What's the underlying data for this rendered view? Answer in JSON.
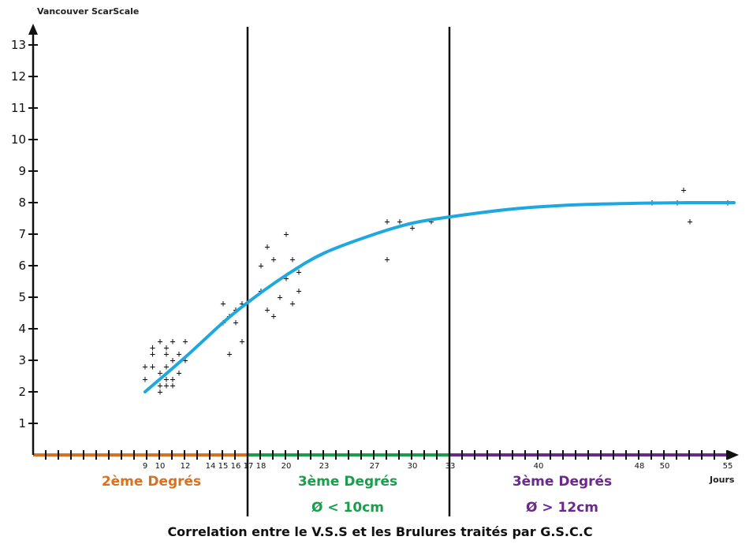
{
  "chart_data": {
    "type": "scatter",
    "title": "Correlation entre le V.S.S et les Brulures traités par G.S.C.C",
    "ylabel": "Vancouver ScarScale",
    "xlabel": "Jours",
    "ylim": [
      0,
      13.5
    ],
    "xlim": [
      0,
      56
    ],
    "y_ticks": [
      1,
      2,
      3,
      4,
      5,
      6,
      7,
      8,
      9,
      10,
      11,
      12,
      13
    ],
    "x_ticks": [
      9,
      10,
      12,
      14,
      15,
      16,
      17,
      18,
      20,
      23,
      27,
      30,
      33,
      40,
      48,
      50,
      55
    ],
    "grid": false,
    "zones": [
      {
        "label": "2ème Degrés",
        "sub": "",
        "from": 0,
        "to": 17,
        "color": "#d9701e"
      },
      {
        "label": "3ème Degrés",
        "sub": "Ø < 10cm",
        "from": 17,
        "to": 33,
        "color": "#1a9e4c"
      },
      {
        "label": "3ème Degrés",
        "sub": "Ø  >  12cm",
        "from": 33,
        "to": 56,
        "color": "#6b2a8a"
      }
    ],
    "dividers": [
      17,
      33
    ],
    "series": [
      {
        "type": "scatter",
        "marker": "+",
        "points": [
          [
            9,
            2.8
          ],
          [
            9,
            2.4
          ],
          [
            9.5,
            2.8
          ],
          [
            9.5,
            3.2
          ],
          [
            9.5,
            3.4
          ],
          [
            10,
            3.6
          ],
          [
            10,
            2.6
          ],
          [
            10,
            2.0
          ],
          [
            10,
            2.2
          ],
          [
            10.5,
            3.4
          ],
          [
            10.5,
            3.2
          ],
          [
            10.5,
            2.8
          ],
          [
            10.5,
            2.4
          ],
          [
            10.5,
            2.2
          ],
          [
            11,
            3.6
          ],
          [
            11,
            2.4
          ],
          [
            11,
            2.2
          ],
          [
            11,
            3.0
          ],
          [
            11.5,
            3.2
          ],
          [
            11.5,
            2.6
          ],
          [
            12,
            3.6
          ],
          [
            12,
            3.0
          ],
          [
            15,
            4.8
          ],
          [
            15,
            4.2
          ],
          [
            15.5,
            4.4
          ],
          [
            15.5,
            3.2
          ],
          [
            16,
            4.6
          ],
          [
            16,
            4.2
          ],
          [
            16.5,
            4.8
          ],
          [
            16.5,
            3.6
          ],
          [
            18,
            6.0
          ],
          [
            18,
            5.2
          ],
          [
            18.5,
            6.6
          ],
          [
            18.5,
            4.6
          ],
          [
            19,
            6.2
          ],
          [
            19,
            4.4
          ],
          [
            19.5,
            5.0
          ],
          [
            20,
            7.0
          ],
          [
            20,
            5.6
          ],
          [
            20.5,
            6.2
          ],
          [
            20.5,
            4.8
          ],
          [
            21,
            5.8
          ],
          [
            21,
            5.2
          ],
          [
            28,
            7.4
          ],
          [
            28,
            6.2
          ],
          [
            29,
            7.4
          ],
          [
            30,
            7.2
          ],
          [
            31.5,
            7.4
          ],
          [
            49,
            8.0
          ],
          [
            51,
            8.0
          ],
          [
            51.5,
            8.4
          ],
          [
            52,
            7.4
          ],
          [
            55,
            8.0
          ]
        ]
      },
      {
        "type": "line",
        "color": "#1fa7e0",
        "x": [
          9,
          12,
          15,
          17,
          20,
          23,
          27,
          30,
          33,
          38,
          43,
          48,
          52,
          55.5
        ],
        "y": [
          2.0,
          3.1,
          4.2,
          4.85,
          5.7,
          6.4,
          7.0,
          7.35,
          7.55,
          7.8,
          7.93,
          7.98,
          8.0,
          8.0
        ]
      }
    ]
  }
}
